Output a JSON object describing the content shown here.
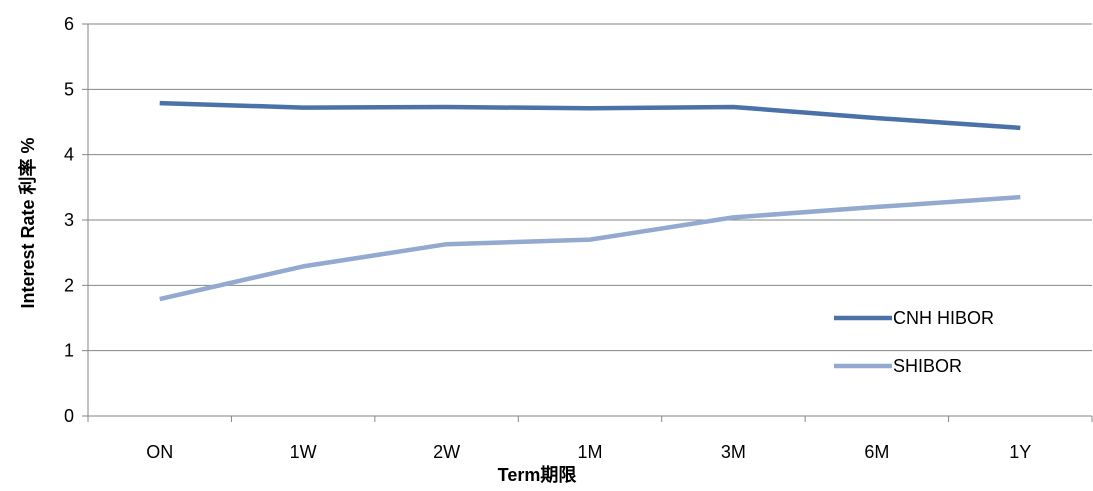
{
  "chart_data": {
    "type": "line",
    "title": "",
    "xlabel": "Term期限",
    "ylabel": "Interest Rate 利率 %",
    "categories": [
      "ON",
      "1W",
      "2W",
      "1M",
      "3M",
      "6M",
      "1Y"
    ],
    "ylim": [
      0,
      6
    ],
    "yticks": [
      0,
      1,
      2,
      3,
      4,
      5,
      6
    ],
    "grid": true,
    "legend_position": "right",
    "series": [
      {
        "name": "CNH HIBOR",
        "color": "#4A72A8",
        "values": [
          4.79,
          4.72,
          4.73,
          4.71,
          4.73,
          4.56,
          4.41
        ]
      },
      {
        "name": "SHIBOR",
        "color": "#93A9CF",
        "values": [
          1.79,
          2.29,
          2.63,
          2.7,
          3.04,
          3.2,
          3.35
        ]
      }
    ]
  }
}
